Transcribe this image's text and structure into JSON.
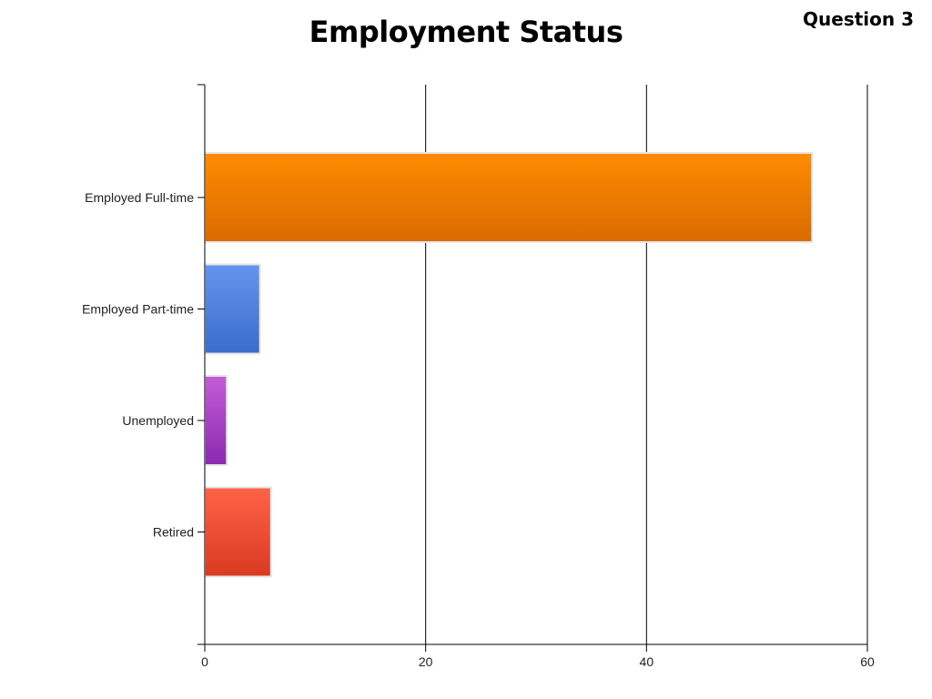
{
  "header": {
    "title": "Employment Status",
    "question_label": "Question 3"
  },
  "chart_data": {
    "type": "bar",
    "orientation": "horizontal",
    "title": "Employment Status",
    "categories": [
      "Employed Full-time",
      "Employed Part-time",
      "Unemployed",
      "Retired"
    ],
    "values": [
      55,
      5,
      2,
      6
    ],
    "colors": [
      [
        "#ff8c00",
        "#d96a00"
      ],
      [
        "#6495ed",
        "#3a6ccc"
      ],
      [
        "#c45cd6",
        "#8a2ab0"
      ],
      [
        "#ff6347",
        "#d83a22"
      ]
    ],
    "xlim": [
      0,
      60
    ],
    "xticks": [
      0,
      20,
      40,
      60
    ],
    "grid": true,
    "xlabel": "",
    "ylabel": ""
  }
}
